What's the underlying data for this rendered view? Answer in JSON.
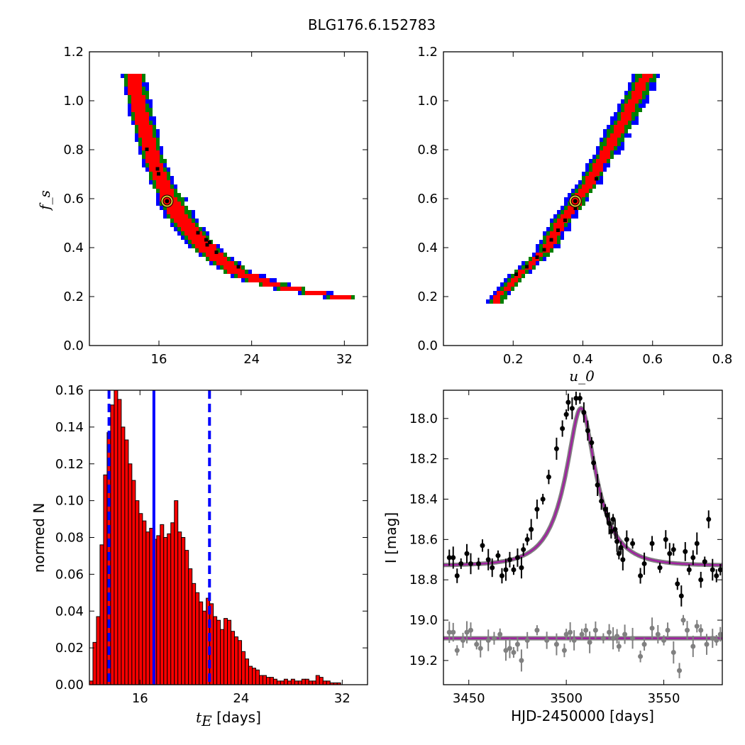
{
  "figure": {
    "title": "BLG176.6.152783"
  },
  "chart_data": [
    {
      "type": "heatmap",
      "panel": "top-left",
      "xlabel": "",
      "ylabel": "f_s",
      "xlim": [
        10,
        34
      ],
      "ylim": [
        0.0,
        1.2
      ],
      "xticks": [
        16,
        24,
        32
      ],
      "yticks": [
        0.0,
        0.2,
        0.4,
        0.6,
        0.8,
        1.0,
        1.2
      ],
      "colors": {
        "outer": "#0000ff",
        "middle": "#008000",
        "inner": "#ff0000",
        "points": "#000000"
      },
      "curve": [
        {
          "y": 1.11,
          "x": 13.8
        },
        {
          "y": 1.05,
          "x": 14.0
        },
        {
          "y": 1.0,
          "x": 14.2
        },
        {
          "y": 0.95,
          "x": 14.4
        },
        {
          "y": 0.9,
          "x": 14.7
        },
        {
          "y": 0.85,
          "x": 15.0
        },
        {
          "y": 0.8,
          "x": 15.3
        },
        {
          "y": 0.75,
          "x": 15.6
        },
        {
          "y": 0.7,
          "x": 16.0
        },
        {
          "y": 0.65,
          "x": 16.4
        },
        {
          "y": 0.6,
          "x": 16.9
        },
        {
          "y": 0.55,
          "x": 17.5
        },
        {
          "y": 0.5,
          "x": 18.2
        },
        {
          "y": 0.45,
          "x": 19.0
        },
        {
          "y": 0.4,
          "x": 20.0
        },
        {
          "y": 0.35,
          "x": 21.3
        },
        {
          "y": 0.3,
          "x": 22.8
        },
        {
          "y": 0.26,
          "x": 25.0
        },
        {
          "y": 0.23,
          "x": 27.5
        },
        {
          "y": 0.21,
          "x": 30.0
        },
        {
          "y": 0.19,
          "x": 32.5
        }
      ],
      "halfwidths": [
        1.2,
        1.0,
        0.75
      ],
      "black_points": [
        [
          15.0,
          0.8
        ],
        [
          15.9,
          0.72
        ],
        [
          16.0,
          0.7
        ],
        [
          19.4,
          0.46
        ],
        [
          20.1,
          0.43
        ],
        [
          20.2,
          0.41
        ],
        [
          20.4,
          0.42
        ],
        [
          21.0,
          0.38
        ],
        [
          22.9,
          0.32
        ]
      ],
      "best_fit": {
        "x": 16.7,
        "y": 0.59
      }
    },
    {
      "type": "heatmap",
      "panel": "top-right",
      "xlabel": "u_0",
      "ylabel": "",
      "xlim": [
        0.0,
        0.8
      ],
      "ylim": [
        0.0,
        1.2
      ],
      "xticks": [
        0.2,
        0.4,
        0.6,
        0.8
      ],
      "yticks": [
        0.0,
        0.2,
        0.4,
        0.6,
        0.8,
        1.0,
        1.2
      ],
      "colors": {
        "outer": "#0000ff",
        "middle": "#008000",
        "inner": "#ff0000",
        "points": "#000000"
      },
      "curve": [
        {
          "y": 0.18,
          "x": 0.148
        },
        {
          "y": 0.25,
          "x": 0.19
        },
        {
          "y": 0.3,
          "x": 0.225
        },
        {
          "y": 0.35,
          "x": 0.265
        },
        {
          "y": 0.4,
          "x": 0.3
        },
        {
          "y": 0.45,
          "x": 0.315
        },
        {
          "y": 0.5,
          "x": 0.335
        },
        {
          "y": 0.55,
          "x": 0.36
        },
        {
          "y": 0.6,
          "x": 0.385
        },
        {
          "y": 0.65,
          "x": 0.41
        },
        {
          "y": 0.7,
          "x": 0.43
        },
        {
          "y": 0.75,
          "x": 0.45
        },
        {
          "y": 0.8,
          "x": 0.472
        },
        {
          "y": 0.85,
          "x": 0.49
        },
        {
          "y": 0.9,
          "x": 0.51
        },
        {
          "y": 0.95,
          "x": 0.53
        },
        {
          "y": 1.0,
          "x": 0.548
        },
        {
          "y": 1.05,
          "x": 0.565
        },
        {
          "y": 1.11,
          "x": 0.585
        }
      ],
      "halfwidths": [
        0.03,
        0.022,
        0.013
      ],
      "black_points": [
        [
          0.21,
          0.29
        ],
        [
          0.24,
          0.32
        ],
        [
          0.27,
          0.36
        ],
        [
          0.29,
          0.39
        ],
        [
          0.31,
          0.43
        ],
        [
          0.33,
          0.47
        ],
        [
          0.35,
          0.51
        ],
        [
          0.38,
          0.56
        ],
        [
          0.44,
          0.68
        ]
      ],
      "best_fit": {
        "x": 0.378,
        "y": 0.59
      }
    },
    {
      "type": "bar",
      "panel": "bottom-left",
      "xlabel": "t_E [days]",
      "xlabel_math": "t",
      "xlabel_sub": "E",
      "xlabel_text": " [days]",
      "ylabel": "normed N",
      "xlim": [
        12,
        34
      ],
      "ylim": [
        0.0,
        0.16
      ],
      "xticks": [
        16,
        24,
        32
      ],
      "yticks": [
        0.0,
        0.02,
        0.04,
        0.06,
        0.08,
        0.1,
        0.12,
        0.14,
        0.16
      ],
      "bin_start": 12.0,
      "bin_width": 0.28,
      "values": [
        0.002,
        0.023,
        0.037,
        0.076,
        0.114,
        0.137,
        0.152,
        0.16,
        0.155,
        0.14,
        0.133,
        0.12,
        0.111,
        0.1,
        0.093,
        0.089,
        0.083,
        0.085,
        0.079,
        0.081,
        0.087,
        0.08,
        0.082,
        0.088,
        0.1,
        0.083,
        0.08,
        0.073,
        0.063,
        0.055,
        0.05,
        0.045,
        0.04,
        0.047,
        0.044,
        0.037,
        0.035,
        0.03,
        0.036,
        0.035,
        0.029,
        0.026,
        0.024,
        0.018,
        0.014,
        0.01,
        0.009,
        0.008,
        0.005,
        0.005,
        0.004,
        0.004,
        0.003,
        0.002,
        0.002,
        0.003,
        0.002,
        0.003,
        0.002,
        0.002,
        0.003,
        0.003,
        0.002,
        0.002,
        0.005,
        0.004,
        0.002,
        0.002,
        0.001,
        0.001,
        0.001
      ],
      "bar_color": "#ff0000",
      "vlines": [
        {
          "x": 17.1,
          "style": "solid",
          "color": "#0000ff"
        },
        {
          "x": 13.55,
          "style": "dashed",
          "color": "#0000ff"
        },
        {
          "x": 21.5,
          "style": "dashed",
          "color": "#0000ff"
        }
      ]
    },
    {
      "type": "scatter",
      "panel": "bottom-right",
      "xlabel": "HJD-2450000 [days]",
      "ylabel": "I [mag]",
      "xlim": [
        3437,
        3580
      ],
      "ylim": [
        19.32,
        17.86
      ],
      "xticks": [
        3450,
        3500,
        3550
      ],
      "yticks": [
        18.0,
        18.2,
        18.4,
        18.6,
        18.8,
        19.0,
        19.2
      ],
      "model": {
        "t0": 3507.5,
        "tE": 16.7,
        "u0": 0.378,
        "fs": 0.59,
        "baseline": 18.73
      },
      "flat_baseline": 19.09,
      "series": [
        {
          "color": "#000000",
          "points": [
            [
              3440,
              18.69
            ],
            [
              3442,
              18.69
            ],
            [
              3444,
              18.78
            ],
            [
              3446,
              18.72
            ],
            [
              3449,
              18.67
            ],
            [
              3451,
              18.72
            ],
            [
              3455,
              18.72
            ],
            [
              3457,
              18.63
            ],
            [
              3460,
              18.7
            ],
            [
              3462,
              18.74
            ],
            [
              3465,
              18.68
            ],
            [
              3467,
              18.78
            ],
            [
              3469,
              18.75
            ],
            [
              3471,
              18.7
            ],
            [
              3473,
              18.75
            ],
            [
              3475,
              18.69
            ],
            [
              3477,
              18.74
            ],
            [
              3478,
              18.65
            ],
            [
              3480,
              18.6
            ],
            [
              3482,
              18.55
            ],
            [
              3485,
              18.45
            ],
            [
              3488,
              18.4
            ],
            [
              3491,
              18.29
            ],
            [
              3495,
              18.15
            ],
            [
              3498,
              18.05
            ],
            [
              3500,
              17.98
            ],
            [
              3501,
              17.92
            ],
            [
              3503,
              17.95
            ],
            [
              3505,
              17.9
            ],
            [
              3507,
              17.9
            ],
            [
              3509,
              17.97
            ],
            [
              3511,
              18.06
            ],
            [
              3513,
              18.12
            ],
            [
              3514,
              18.22
            ],
            [
              3516,
              18.33
            ],
            [
              3518,
              18.41
            ],
            [
              3520,
              18.45
            ],
            [
              3521,
              18.48
            ],
            [
              3522,
              18.52
            ],
            [
              3523,
              18.56
            ],
            [
              3524,
              18.5
            ],
            [
              3525,
              18.55
            ],
            [
              3526,
              18.61
            ],
            [
              3527,
              18.67
            ],
            [
              3528,
              18.64
            ],
            [
              3529,
              18.7
            ],
            [
              3531,
              18.6
            ],
            [
              3534,
              18.62
            ],
            [
              3538,
              18.78
            ],
            [
              3540,
              18.72
            ],
            [
              3544,
              18.62
            ],
            [
              3548,
              18.74
            ],
            [
              3551,
              18.6
            ],
            [
              3553,
              18.67
            ],
            [
              3555,
              18.65
            ],
            [
              3557,
              18.82
            ],
            [
              3559,
              18.88
            ],
            [
              3561,
              18.66
            ],
            [
              3563,
              18.75
            ],
            [
              3565,
              18.69
            ],
            [
              3567,
              18.62
            ],
            [
              3569,
              18.8
            ],
            [
              3571,
              18.71
            ],
            [
              3573,
              18.5
            ],
            [
              3575,
              18.75
            ],
            [
              3577,
              18.78
            ],
            [
              3579,
              18.75
            ]
          ]
        },
        {
          "color": "#808080",
          "points": [
            [
              3440,
              19.06
            ],
            [
              3442,
              19.06
            ],
            [
              3444,
              19.15
            ],
            [
              3447,
              19.1
            ],
            [
              3449,
              19.06
            ],
            [
              3451,
              19.05
            ],
            [
              3454,
              19.12
            ],
            [
              3456,
              19.14
            ],
            [
              3460,
              19.1
            ],
            [
              3463,
              19.09
            ],
            [
              3466,
              19.07
            ],
            [
              3469,
              19.15
            ],
            [
              3471,
              19.14
            ],
            [
              3473,
              19.16
            ],
            [
              3475,
              19.12
            ],
            [
              3477,
              19.2
            ],
            [
              3480,
              19.1
            ],
            [
              3485,
              19.05
            ],
            [
              3490,
              19.1
            ],
            [
              3495,
              19.12
            ],
            [
              3499,
              19.15
            ],
            [
              3500,
              19.07
            ],
            [
              3502,
              19.06
            ],
            [
              3504,
              19.1
            ],
            [
              3508,
              19.07
            ],
            [
              3510,
              19.05
            ],
            [
              3512,
              19.11
            ],
            [
              3515,
              19.05
            ],
            [
              3519,
              19.09
            ],
            [
              3522,
              19.06
            ],
            [
              3524,
              19.09
            ],
            [
              3526,
              19.08
            ],
            [
              3527,
              19.13
            ],
            [
              3530,
              19.07
            ],
            [
              3534,
              19.09
            ],
            [
              3538,
              19.18
            ],
            [
              3540,
              19.12
            ],
            [
              3544,
              19.04
            ],
            [
              3547,
              19.07
            ],
            [
              3550,
              19.1
            ],
            [
              3552,
              19.05
            ],
            [
              3555,
              19.16
            ],
            [
              3558,
              19.25
            ],
            [
              3560,
              19.0
            ],
            [
              3562,
              19.05
            ],
            [
              3565,
              19.13
            ],
            [
              3567,
              19.03
            ],
            [
              3569,
              19.05
            ],
            [
              3572,
              19.12
            ],
            [
              3575,
              19.09
            ],
            [
              3577,
              19.1
            ],
            [
              3579,
              19.07
            ]
          ]
        }
      ],
      "model_colors": {
        "band": "#808080",
        "line": "#a020a0"
      }
    }
  ]
}
